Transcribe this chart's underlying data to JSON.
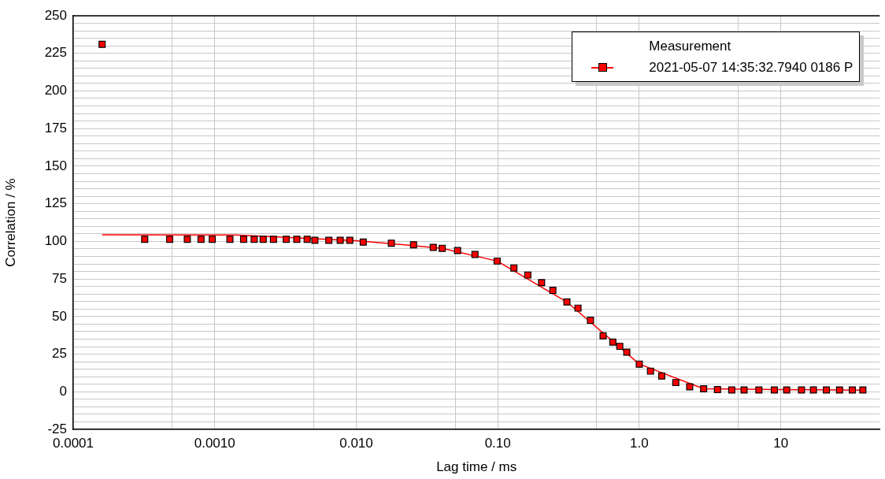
{
  "chart_data": {
    "type": "scatter",
    "xlabel": "Lag time / ms",
    "ylabel": "Correlation / %",
    "legend_title": "Measurement",
    "legend": "top right",
    "grid": true,
    "log": "x",
    "marker": "square",
    "xlim": [
      0.0001,
      50
    ],
    "xticks": [
      {
        "value": 0.0001,
        "label": "0.0001"
      },
      {
        "value": 0.0005,
        "label": null
      },
      {
        "value": 0.001,
        "label": "0.0010"
      },
      {
        "value": 0.005,
        "label": null
      },
      {
        "value": 0.01,
        "label": "0.010"
      },
      {
        "value": 0.05,
        "label": null
      },
      {
        "value": 0.1,
        "label": "0.10"
      },
      {
        "value": 0.5,
        "label": null
      },
      {
        "value": 1,
        "label": "1.0"
      },
      {
        "value": 5,
        "label": null
      },
      10
    ],
    "ylim": [
      -25,
      250
    ],
    "yticks": [
      -25,
      {
        "value": -20,
        "label": null
      },
      {
        "value": -15,
        "label": null
      },
      {
        "value": -10,
        "label": null
      },
      {
        "value": -5,
        "label": null
      },
      0,
      {
        "value": 5,
        "label": null
      },
      {
        "value": 10,
        "label": null
      },
      {
        "value": 15,
        "label": null
      },
      {
        "value": 20,
        "label": null
      },
      25,
      {
        "value": 30,
        "label": null
      },
      {
        "value": 35,
        "label": null
      },
      {
        "value": 40,
        "label": null
      },
      {
        "value": 45,
        "label": null
      },
      50,
      {
        "value": 55,
        "label": null
      },
      {
        "value": 60,
        "label": null
      },
      {
        "value": 65,
        "label": null
      },
      {
        "value": 70,
        "label": null
      },
      75,
      {
        "value": 80,
        "label": null
      },
      {
        "value": 85,
        "label": null
      },
      {
        "value": 90,
        "label": null
      },
      {
        "value": 95,
        "label": null
      },
      100,
      {
        "value": 105,
        "label": null
      },
      {
        "value": 110,
        "label": null
      },
      {
        "value": 115,
        "label": null
      },
      {
        "value": 120,
        "label": null
      },
      125,
      {
        "value": 130,
        "label": null
      },
      {
        "value": 135,
        "label": null
      },
      {
        "value": 140,
        "label": null
      },
      {
        "value": 145,
        "label": null
      },
      150,
      {
        "value": 155,
        "label": null
      },
      {
        "value": 160,
        "label": null
      },
      {
        "value": 165,
        "label": null
      },
      {
        "value": 170,
        "label": null
      },
      175,
      {
        "value": 180,
        "label": null
      },
      {
        "value": 185,
        "label": null
      },
      {
        "value": 190,
        "label": null
      },
      {
        "value": 195,
        "label": null
      },
      200,
      {
        "value": 205,
        "label": null
      },
      {
        "value": 210,
        "label": null
      },
      {
        "value": 215,
        "label": null
      },
      {
        "value": 220,
        "label": null
      },
      225,
      {
        "value": 230,
        "label": null
      },
      {
        "value": 235,
        "label": null
      },
      {
        "value": 240,
        "label": null
      },
      {
        "value": 245,
        "label": null
      },
      250
    ],
    "series": [
      {
        "type": "line",
        "marker": "none",
        "line_style": "solid",
        "color": "#ff0000",
        "x": [
          0.00016,
          0.0014,
          0.01,
          0.0405,
          0.099,
          0.308,
          1.0,
          2.85,
          38
        ],
        "values": [
          104.4,
          104.2,
          100.5,
          95.4,
          86.9,
          59.7,
          18.4,
          2.0,
          1.0
        ]
      },
      {
        "name": "2021-05-07 14:35:32.7940 0186 P",
        "color": "#ff0000",
        "x": [
          0.00016,
          0.00032,
          0.00048,
          0.00064,
          0.0008,
          0.00096,
          0.00128,
          0.0016,
          0.0019,
          0.0022,
          0.0026,
          0.0032,
          0.0038,
          0.0045,
          0.0051,
          0.0064,
          0.0077,
          0.009,
          0.0112,
          0.0177,
          0.0254,
          0.035,
          0.0405,
          0.052,
          0.069,
          0.099,
          0.13,
          0.163,
          0.204,
          0.245,
          0.308,
          0.369,
          0.452,
          0.555,
          0.65,
          0.728,
          0.816,
          1.0,
          1.2,
          1.44,
          1.81,
          2.27,
          2.85,
          3.57,
          4.5,
          5.5,
          7,
          9,
          11,
          14,
          17,
          21,
          26,
          32,
          38
        ],
        "values": [
          231,
          101.4,
          101.4,
          101.4,
          101.4,
          101.4,
          101.4,
          101.4,
          101.4,
          101.4,
          101.4,
          101.4,
          101.4,
          101.4,
          100.7,
          100.7,
          100.7,
          100.7,
          99.5,
          98.8,
          97.7,
          96,
          95.4,
          93.9,
          91.3,
          86.9,
          82.3,
          77.6,
          72.6,
          67.4,
          59.7,
          55.6,
          47.5,
          37.2,
          33.0,
          30.2,
          26.3,
          18.4,
          13.7,
          10.5,
          6.1,
          3.3,
          2.0,
          1.4,
          1.2,
          1.2,
          1.2,
          1.2,
          1.2,
          1.2,
          1.2,
          1.2,
          1.2,
          1.2,
          1.2
        ]
      }
    ]
  }
}
